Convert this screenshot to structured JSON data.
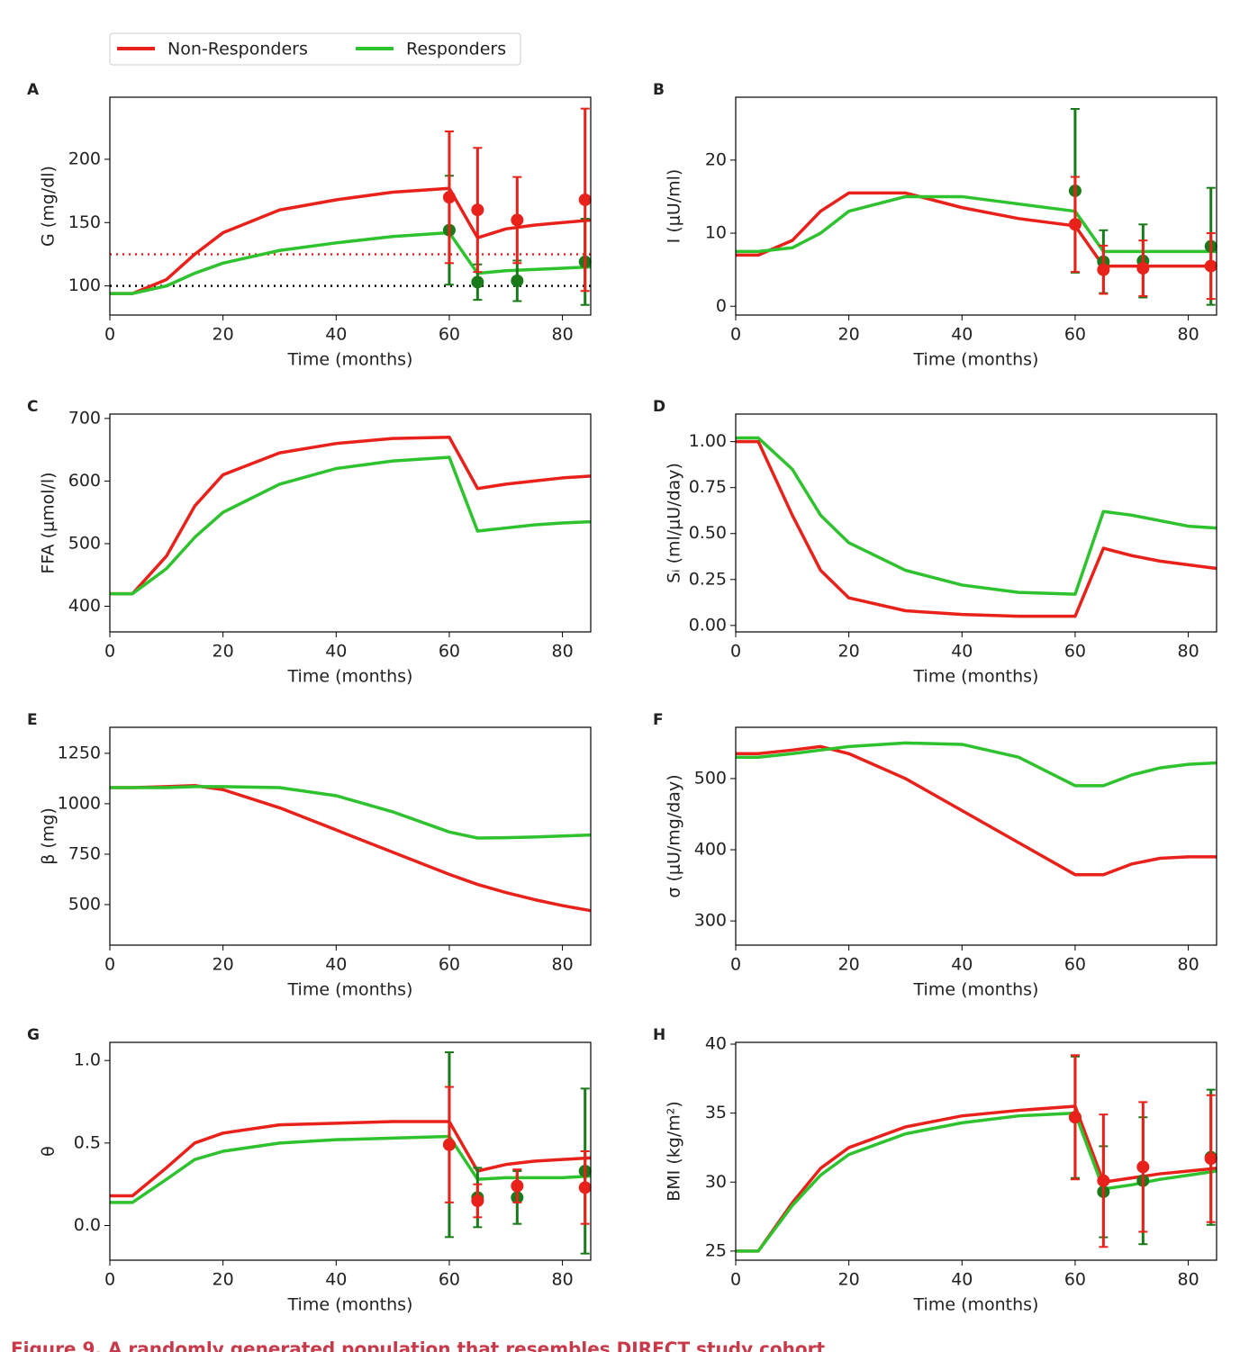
{
  "caption": "Figure 9. A randomly generated population that resembles DIRECT study cohort",
  "chart_data": [
    {
      "type": "line",
      "label": "A",
      "ylabel": "G (mg/dl)",
      "xlabel": "Time (months)",
      "x": [
        0,
        4,
        10,
        15,
        20,
        30,
        40,
        50,
        60,
        65,
        70,
        75,
        80,
        85
      ],
      "xlim": [
        0,
        85
      ],
      "xticks": [
        0,
        20,
        40,
        60,
        80
      ],
      "ylim": [
        77,
        249
      ],
      "yticks": [
        100,
        150,
        200
      ],
      "series": [
        {
          "name": "Non-Responders",
          "color": "#e8221b",
          "values": [
            94,
            94,
            105,
            125,
            142,
            160,
            168,
            174,
            177,
            138,
            145,
            148,
            150,
            152
          ]
        },
        {
          "name": "Responders",
          "color": "#2ec22e",
          "values": [
            94,
            94,
            100,
            110,
            118,
            128,
            134,
            139,
            142,
            110,
            112,
            113,
            114,
            115
          ]
        }
      ],
      "hlines": [
        {
          "value": 125,
          "color": "#e8221b"
        },
        {
          "value": 100,
          "color": "#000000"
        }
      ],
      "observations": [
        {
          "color": "#1a7a1a",
          "x": [
            60,
            65,
            72,
            84
          ],
          "values": [
            144,
            103,
            104,
            119
          ],
          "errors": [
            43,
            14,
            16,
            34
          ]
        },
        {
          "color": "#e8221b",
          "x": [
            60,
            65,
            72,
            84
          ],
          "values": [
            170,
            160,
            152,
            168
          ],
          "errors": [
            52,
            49,
            34,
            72
          ]
        }
      ]
    },
    {
      "type": "line",
      "label": "B",
      "ylabel": "I (μU/ml)",
      "xlabel": "Time (months)",
      "x": [
        0,
        4,
        10,
        15,
        20,
        30,
        40,
        50,
        60,
        65,
        70,
        75,
        80,
        85
      ],
      "xlim": [
        0,
        85
      ],
      "xticks": [
        0,
        20,
        40,
        60,
        80
      ],
      "ylim": [
        -1.2,
        28.6
      ],
      "yticks": [
        0,
        10,
        20
      ],
      "series": [
        {
          "name": "Non-Responders",
          "color": "#e8221b",
          "values": [
            7,
            7,
            9,
            13,
            15.5,
            15.5,
            13.5,
            12,
            11,
            5.5,
            5.5,
            5.5,
            5.5,
            5.5
          ]
        },
        {
          "name": "Responders",
          "color": "#2ec22e",
          "values": [
            7.5,
            7.5,
            8,
            10,
            13,
            15,
            15,
            14,
            13,
            7.5,
            7.5,
            7.5,
            7.5,
            7.5
          ]
        }
      ],
      "observations": [
        {
          "color": "#1a7a1a",
          "x": [
            60,
            65,
            72,
            84
          ],
          "values": [
            15.8,
            6.1,
            6.2,
            8.2
          ],
          "errors": [
            11.2,
            4.3,
            5,
            8
          ]
        },
        {
          "color": "#e8221b",
          "x": [
            60,
            65,
            72,
            84
          ],
          "values": [
            11.2,
            5,
            5.2,
            5.5
          ],
          "errors": [
            6.5,
            3.3,
            3.8,
            4.5
          ]
        }
      ]
    },
    {
      "type": "line",
      "label": "C",
      "ylabel": "FFA (μmol/l)",
      "xlabel": "Time (months)",
      "x": [
        0,
        4,
        10,
        15,
        20,
        30,
        40,
        50,
        60,
        65,
        70,
        75,
        80,
        85
      ],
      "xlim": [
        0,
        85
      ],
      "xticks": [
        0,
        20,
        40,
        60,
        80
      ],
      "ylim": [
        359,
        707
      ],
      "yticks": [
        400,
        500,
        600,
        700
      ],
      "series": [
        {
          "name": "Non-Responders",
          "color": "#e8221b",
          "values": [
            420,
            420,
            480,
            560,
            610,
            645,
            660,
            668,
            670,
            588,
            595,
            600,
            605,
            608
          ]
        },
        {
          "name": "Responders",
          "color": "#2ec22e",
          "values": [
            420,
            420,
            460,
            510,
            550,
            595,
            620,
            632,
            638,
            520,
            525,
            530,
            533,
            535
          ]
        }
      ]
    },
    {
      "type": "line",
      "label": "D",
      "ylabel": "Sᵢ (ml/μU/day)",
      "xlabel": "Time (months)",
      "x": [
        0,
        4,
        10,
        15,
        20,
        30,
        40,
        50,
        60,
        65,
        70,
        75,
        80,
        85
      ],
      "xlim": [
        0,
        85
      ],
      "xticks": [
        0,
        20,
        40,
        60,
        80
      ],
      "ylim": [
        -0.035,
        1.15
      ],
      "yticks": [
        {
          "value": 0,
          "label": "0.00"
        },
        {
          "value": 0.25,
          "label": "0.25"
        },
        {
          "value": 0.5,
          "label": "0.50"
        },
        {
          "value": 0.75,
          "label": "0.75"
        },
        {
          "value": 1,
          "label": "1.00"
        }
      ],
      "series": [
        {
          "name": "Non-Responders",
          "color": "#e8221b",
          "values": [
            1,
            1,
            0.6,
            0.3,
            0.15,
            0.08,
            0.06,
            0.05,
            0.05,
            0.42,
            0.38,
            0.35,
            0.33,
            0.31
          ]
        },
        {
          "name": "Responders",
          "color": "#2ec22e",
          "values": [
            1.02,
            1.02,
            0.85,
            0.6,
            0.45,
            0.3,
            0.22,
            0.18,
            0.17,
            0.62,
            0.6,
            0.57,
            0.54,
            0.53
          ]
        }
      ]
    },
    {
      "type": "line",
      "label": "E",
      "ylabel": "β (mg)",
      "xlabel": "Time (months)",
      "x": [
        0,
        4,
        10,
        15,
        20,
        30,
        40,
        50,
        60,
        65,
        70,
        75,
        80,
        85
      ],
      "xlim": [
        0,
        85
      ],
      "xticks": [
        0,
        20,
        40,
        60,
        80
      ],
      "ylim": [
        299,
        1379
      ],
      "yticks": [
        500,
        750,
        1000,
        1250
      ],
      "series": [
        {
          "name": "Non-Responders",
          "color": "#e8221b",
          "values": [
            1080,
            1080,
            1085,
            1090,
            1070,
            980,
            870,
            760,
            650,
            600,
            560,
            525,
            495,
            470
          ]
        },
        {
          "name": "Responders",
          "color": "#2ec22e",
          "values": [
            1080,
            1080,
            1080,
            1085,
            1085,
            1080,
            1040,
            960,
            860,
            830,
            832,
            835,
            840,
            845
          ]
        }
      ]
    },
    {
      "type": "line",
      "label": "F",
      "ylabel": "σ (μU/mg/day)",
      "xlabel": "Time (months)",
      "x": [
        0,
        4,
        10,
        15,
        20,
        30,
        40,
        50,
        60,
        65,
        70,
        75,
        80,
        85
      ],
      "xlim": [
        0,
        85
      ],
      "xticks": [
        0,
        20,
        40,
        60,
        80
      ],
      "ylim": [
        266,
        572
      ],
      "yticks": [
        300,
        400,
        500
      ],
      "series": [
        {
          "name": "Non-Responders",
          "color": "#e8221b",
          "values": [
            535,
            535,
            540,
            545,
            535,
            500,
            455,
            410,
            365,
            365,
            380,
            388,
            390,
            390
          ]
        },
        {
          "name": "Responders",
          "color": "#2ec22e",
          "values": [
            530,
            530,
            535,
            540,
            545,
            550,
            548,
            530,
            490,
            490,
            505,
            515,
            520,
            522
          ]
        }
      ]
    },
    {
      "type": "line",
      "label": "G",
      "ylabel": "θ",
      "xlabel": "Time (months)",
      "x": [
        0,
        4,
        10,
        15,
        20,
        30,
        40,
        50,
        60,
        65,
        70,
        75,
        80,
        85
      ],
      "xlim": [
        0,
        85
      ],
      "xticks": [
        0,
        20,
        40,
        60,
        80
      ],
      "ylim": [
        -0.21,
        1.11
      ],
      "yticks": [
        {
          "value": 0,
          "label": "0.0"
        },
        {
          "value": 0.5,
          "label": "0.5"
        },
        {
          "value": 1,
          "label": "1.0"
        }
      ],
      "series": [
        {
          "name": "Non-Responders",
          "color": "#e8221b",
          "values": [
            0.18,
            0.18,
            0.35,
            0.5,
            0.56,
            0.61,
            0.62,
            0.63,
            0.63,
            0.33,
            0.37,
            0.39,
            0.4,
            0.41
          ]
        },
        {
          "name": "Responders",
          "color": "#2ec22e",
          "values": [
            0.14,
            0.14,
            0.28,
            0.4,
            0.45,
            0.5,
            0.52,
            0.53,
            0.54,
            0.28,
            0.29,
            0.29,
            0.29,
            0.3
          ]
        }
      ],
      "observations": [
        {
          "color": "#1a7a1a",
          "x": [
            60,
            65,
            72,
            84
          ],
          "values": [
            0.49,
            0.17,
            0.17,
            0.33
          ],
          "errors": [
            0.56,
            0.18,
            0.16,
            0.5
          ]
        },
        {
          "color": "#e8221b",
          "x": [
            60,
            65,
            72,
            84
          ],
          "values": [
            0.49,
            0.15,
            0.24,
            0.23
          ],
          "errors": [
            0.35,
            0.1,
            0.1,
            0.22
          ]
        }
      ]
    },
    {
      "type": "line",
      "label": "H",
      "ylabel": "BMI (kg/m²)",
      "xlabel": "Time (months)",
      "x": [
        0,
        4,
        10,
        15,
        20,
        30,
        40,
        50,
        60,
        65,
        70,
        75,
        80,
        85
      ],
      "xlim": [
        0,
        85
      ],
      "xticks": [
        0,
        20,
        40,
        60,
        80
      ],
      "ylim": [
        24.34,
        40.13
      ],
      "yticks": [
        25,
        30,
        35,
        40
      ],
      "series": [
        {
          "name": "Non-Responders",
          "color": "#e8221b",
          "values": [
            25,
            25,
            28.5,
            31,
            32.5,
            34,
            34.8,
            35.2,
            35.5,
            30,
            30.3,
            30.6,
            30.8,
            31
          ]
        },
        {
          "name": "Responders",
          "color": "#2ec22e",
          "values": [
            25,
            25,
            28.3,
            30.5,
            32,
            33.5,
            34.3,
            34.8,
            35,
            29.5,
            29.8,
            30.2,
            30.5,
            30.8
          ]
        }
      ],
      "observations": [
        {
          "color": "#1a7a1a",
          "x": [
            60,
            65,
            72,
            84
          ],
          "values": [
            34.7,
            29.3,
            30.1,
            31.8
          ],
          "errors": [
            4.4,
            3.3,
            4.6,
            4.9
          ]
        },
        {
          "color": "#e8221b",
          "x": [
            60,
            65,
            72,
            84
          ],
          "values": [
            34.7,
            30.1,
            31.1,
            31.7
          ],
          "errors": [
            4.5,
            4.8,
            4.7,
            4.6
          ]
        }
      ]
    }
  ]
}
